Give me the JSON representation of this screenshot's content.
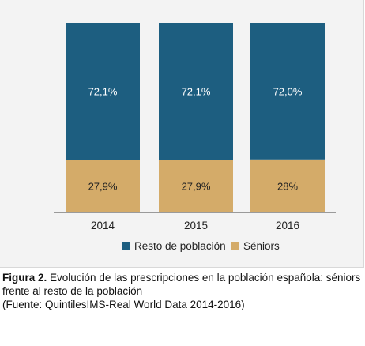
{
  "chart_data": {
    "type": "bar",
    "stacked": true,
    "percent": true,
    "categories": [
      "2014",
      "2015",
      "2016"
    ],
    "series": [
      {
        "name": "Séniors",
        "values": [
          27.9,
          27.9,
          28.0
        ],
        "labels": [
          "27,9%",
          "27,9%",
          "28%"
        ],
        "color": "#d4ab69"
      },
      {
        "name": "Resto de población",
        "values": [
          72.1,
          72.1,
          72.0
        ],
        "labels": [
          "72,1%",
          "72,1%",
          "72,0%"
        ],
        "color": "#1d5e80"
      }
    ],
    "ylim": [
      0,
      100
    ],
    "legend_position": "bottom",
    "grid": false
  },
  "caption": {
    "label": "Figura 2.",
    "text": "Evolución de las prescripciones en la población española: séniors frente al resto de la población",
    "source": "(Fuente: QuintilesIMS-Real World Data 2014-2016)"
  },
  "colors": {
    "label_on_dark": "#ffffff",
    "label_on_light": "#222222",
    "axis": "#9a9a9a"
  }
}
